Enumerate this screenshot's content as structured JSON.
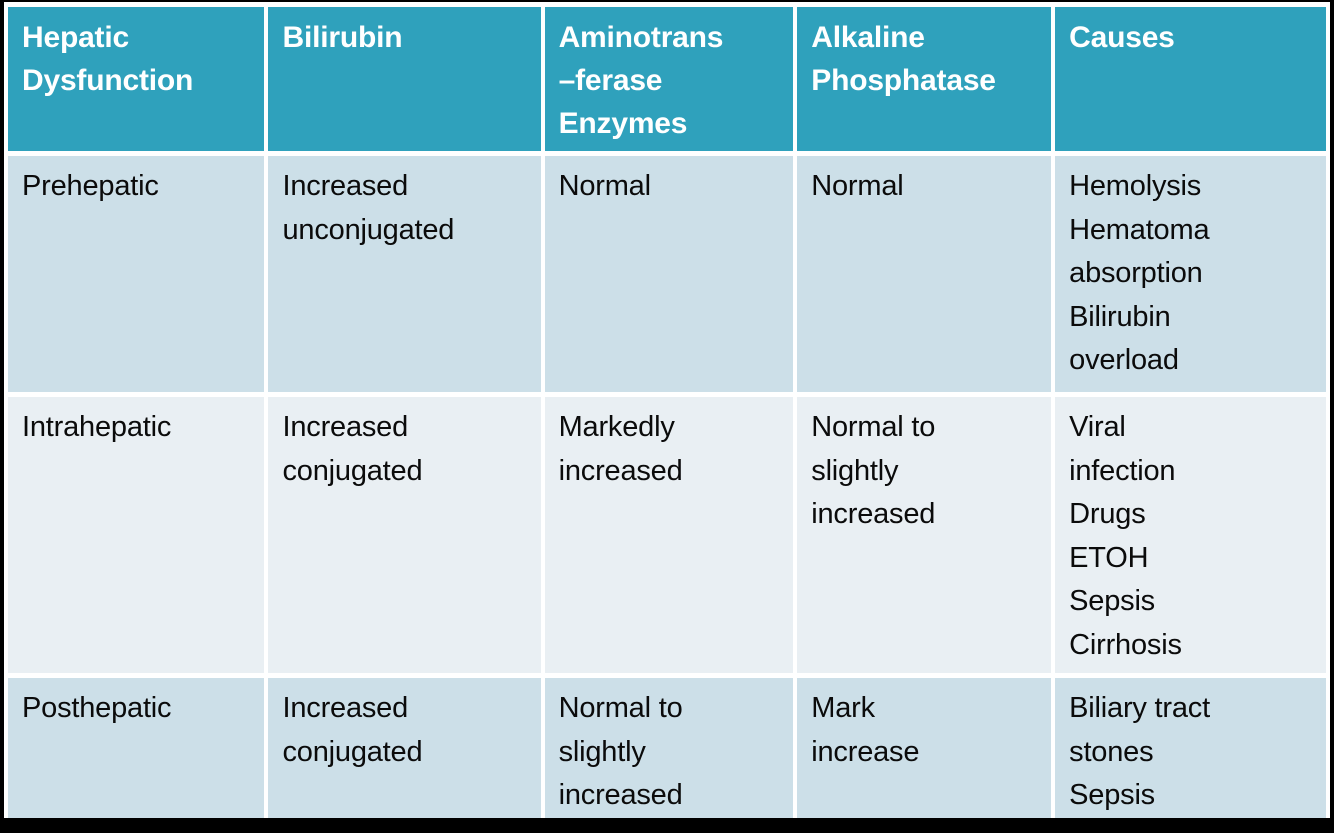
{
  "table": {
    "title": "Hepatic dysfunction laboratory findings table",
    "headers": [
      "Hepatic\nDysfunction",
      "Bilirubin",
      "Aminotrans\n–ferase\nEnzymes",
      "Alkaline\nPhosphatase",
      "Causes"
    ],
    "rows": [
      {
        "cells": [
          "Prehepatic",
          "Increased\nunconjugated",
          "Normal",
          "Normal",
          "Hemolysis\nHematoma\nabsorption\nBilirubin\noverload"
        ]
      },
      {
        "cells": [
          "Intrahepatic",
          "Increased\nconjugated",
          "Markedly\nincreased",
          "Normal to\nslightly\nincreased",
          "Viral\ninfection\nDrugs\nETOH\nSepsis\nCirrhosis"
        ]
      },
      {
        "cells": [
          "Posthepatic",
          "Increased\nconjugated",
          "Normal to\nslightly\nincreased",
          "Mark\nincrease",
          "Biliary tract\nstones\nSepsis"
        ]
      }
    ],
    "colors": {
      "header_bg": "#2fa1bc",
      "header_text": "#ffffff",
      "row_bg": "#ccdfe8",
      "row_alt_bg": "#e9eff3",
      "separator": "#ffffff",
      "frame_border": "#000000",
      "body_text": "#000000"
    }
  }
}
